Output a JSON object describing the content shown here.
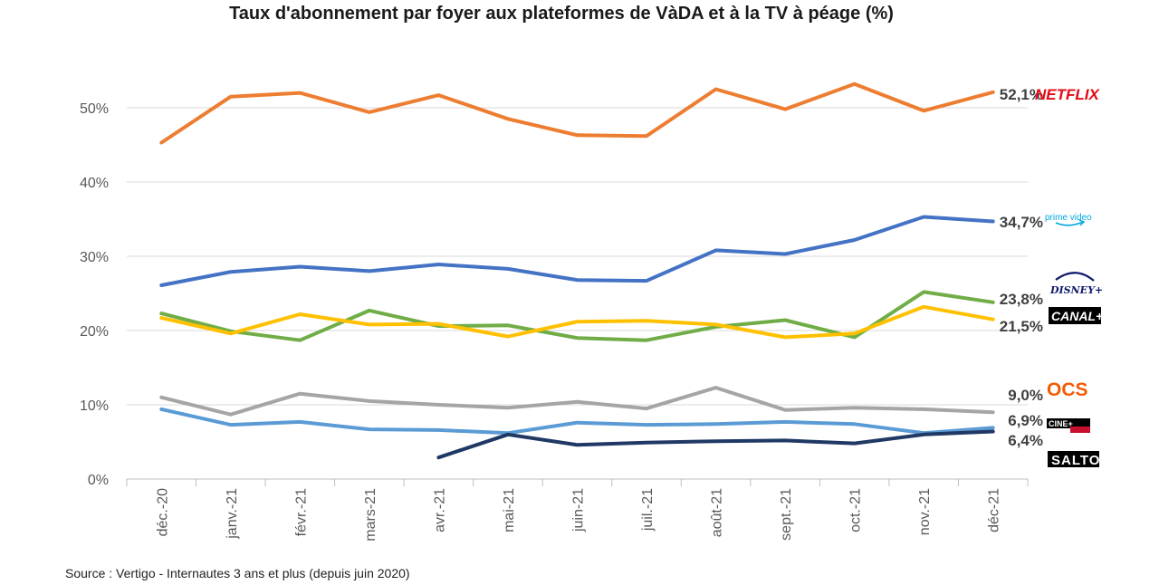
{
  "chart_data": {
    "type": "line",
    "title": "Taux d'abonnement par foyer aux plateformes de VàDA et à la TV à péage (%)",
    "xlabel": "",
    "ylabel": "",
    "ylim": [
      0,
      0.6
    ],
    "yticks": [
      0,
      0.1,
      0.2,
      0.3,
      0.4,
      0.5
    ],
    "ytick_labels": [
      "0%",
      "10%",
      "20%",
      "30%",
      "40%",
      "50%"
    ],
    "grid": true,
    "categories": [
      "déc.-20",
      "janv.-21",
      "févr.-21",
      "mars-21",
      "avr.-21",
      "mai-21",
      "juin-21",
      "juil.-21",
      "août-21",
      "sept.-21",
      "oct.-21",
      "nov.-21",
      "déc-21"
    ],
    "series": [
      {
        "name": "NETFLIX",
        "color": "#ED7D31",
        "end_label": "52,1%",
        "values": [
          0.453,
          0.515,
          0.52,
          0.494,
          0.517,
          0.485,
          0.463,
          0.462,
          0.525,
          0.498,
          0.532,
          0.496,
          0.521
        ]
      },
      {
        "name": "prime video",
        "color": "#4472C4",
        "end_label": "34,7%",
        "values": [
          0.261,
          0.279,
          0.286,
          0.28,
          0.289,
          0.283,
          0.268,
          0.267,
          0.308,
          0.303,
          0.322,
          0.353,
          0.347
        ]
      },
      {
        "name": "DISNEY+",
        "color": "#70AD47",
        "end_label": "23,8%",
        "values": [
          0.223,
          0.199,
          0.187,
          0.227,
          0.206,
          0.207,
          0.19,
          0.187,
          0.205,
          0.214,
          0.191,
          0.252,
          0.238
        ]
      },
      {
        "name": "CANAL+",
        "color": "#FFC000",
        "end_label": "21,5%",
        "values": [
          0.217,
          0.196,
          0.222,
          0.208,
          0.209,
          0.192,
          0.212,
          0.213,
          0.208,
          0.191,
          0.196,
          0.232,
          0.215
        ]
      },
      {
        "name": "OCS",
        "color": "#A5A5A5",
        "end_label": "9,0%",
        "values": [
          0.11,
          0.087,
          0.115,
          0.105,
          0.1,
          0.096,
          0.104,
          0.095,
          0.123,
          0.093,
          0.096,
          0.094,
          0.09
        ]
      },
      {
        "name": "CINE+",
        "color": "#5B9BD5",
        "end_label": "6,9%",
        "values": [
          0.094,
          0.073,
          0.077,
          0.067,
          0.066,
          0.062,
          0.076,
          0.073,
          0.074,
          0.077,
          0.074,
          0.062,
          0.069
        ]
      },
      {
        "name": "SALTO",
        "color": "#1F3864",
        "end_label": "6,4%",
        "values": [
          null,
          null,
          null,
          null,
          0.029,
          0.06,
          0.046,
          0.049,
          0.051,
          0.052,
          0.048,
          0.06,
          0.064
        ]
      }
    ],
    "source": "Source : Vertigo - Internautes 3 ans et plus (depuis juin 2020)"
  }
}
